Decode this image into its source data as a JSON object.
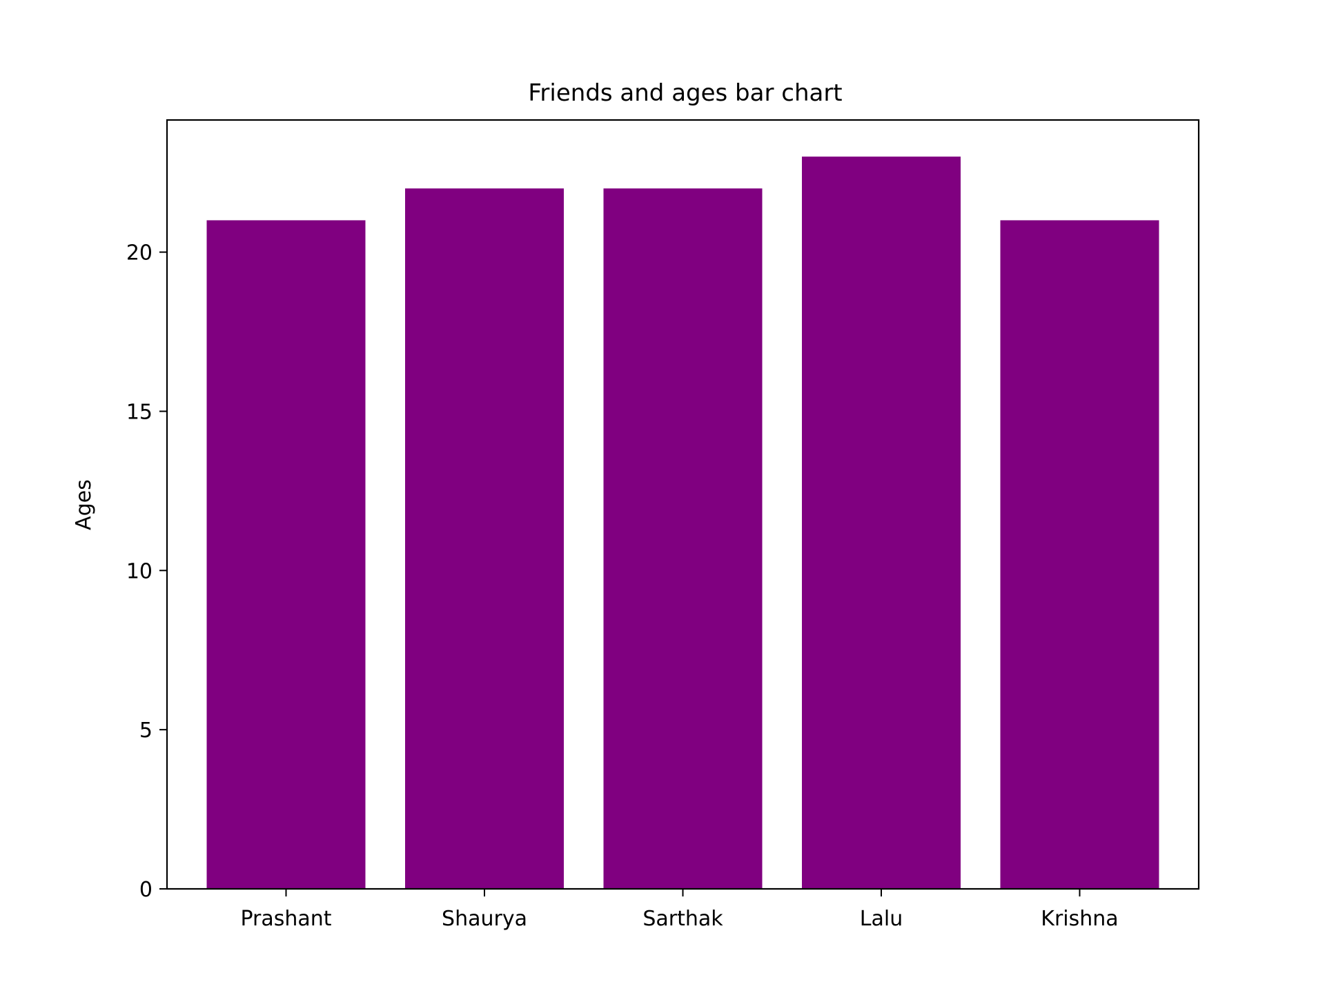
{
  "chart_data": {
    "type": "bar",
    "title": "Friends and ages bar chart",
    "xlabel": "",
    "ylabel": "Ages",
    "categories": [
      "Prashant",
      "Shaurya",
      "Sarthak",
      "Lalu",
      "Krishna"
    ],
    "values": [
      21,
      22,
      22,
      23,
      21
    ],
    "ylim": [
      0,
      24.15
    ],
    "yticks": [
      0,
      5,
      10,
      15,
      20
    ],
    "grid": false,
    "legend": "none",
    "bar_color": "#800080"
  }
}
